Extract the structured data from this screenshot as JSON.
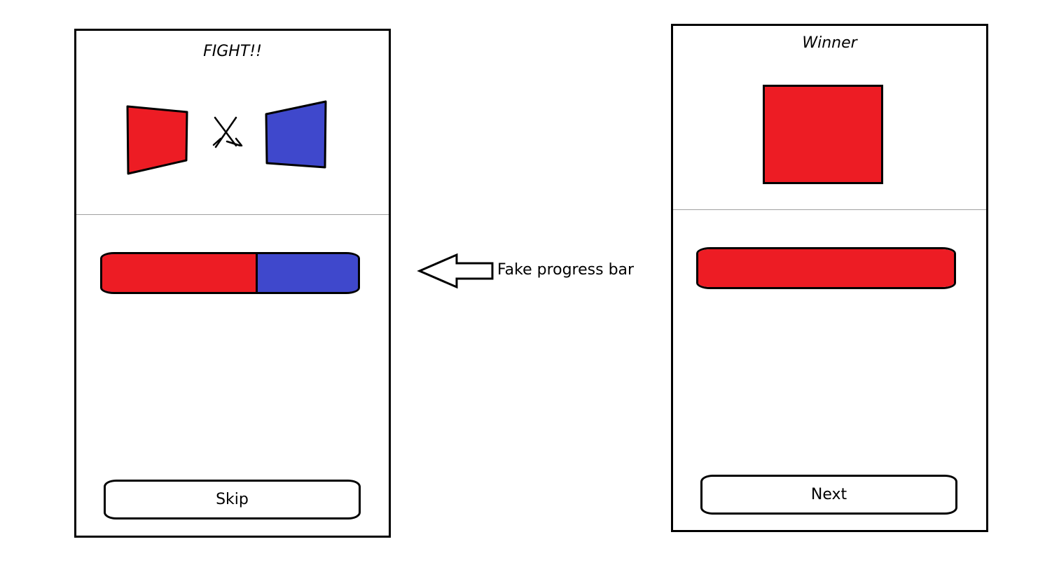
{
  "fight_screen": {
    "title": "FIGHT!!",
    "left_fighter_color": "#ed1c24",
    "right_fighter_color": "#3f48cc",
    "versus_icon": "crossed-swords-icon",
    "progress": {
      "red_fraction": 0.6,
      "blue_fraction": 0.4,
      "red_color": "#ed1c24",
      "blue_color": "#3f48cc"
    },
    "skip_label": "Skip"
  },
  "annotation": {
    "label": "Fake progress bar",
    "icon": "left-arrow-icon"
  },
  "winner_screen": {
    "title": "Winner",
    "winner_color": "#ed1c24",
    "progress": {
      "red_fraction": 1.0,
      "red_color": "#ed1c24"
    },
    "next_label": "Next"
  }
}
